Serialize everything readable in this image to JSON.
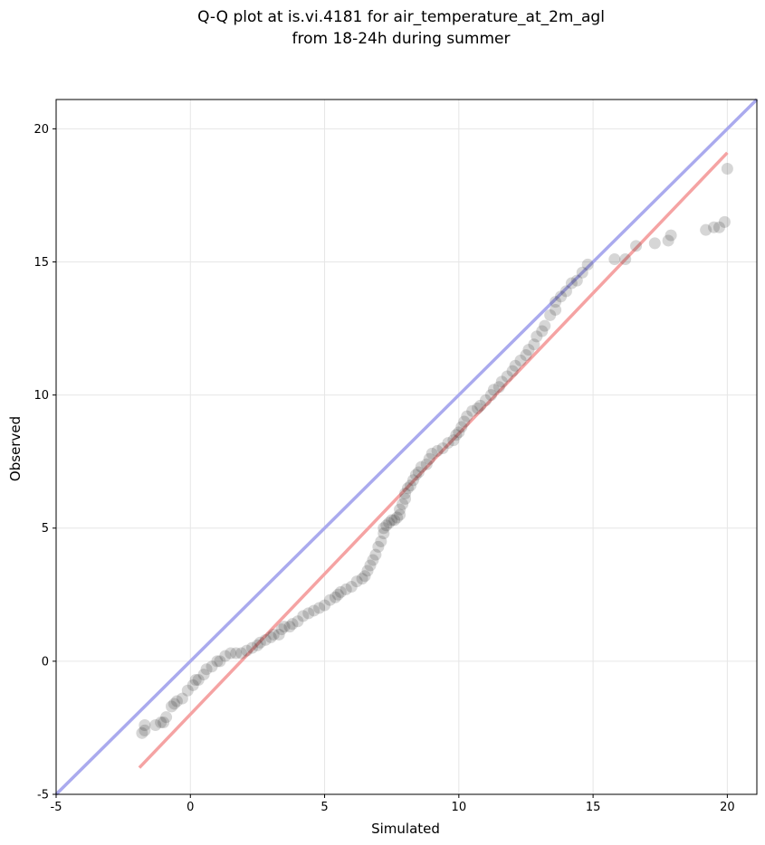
{
  "chart_data": {
    "type": "scatter",
    "title": [
      "Q-Q plot at is.vi.4181 for air_temperature_at_2m_agl",
      "from 18-24h during summer"
    ],
    "xlabel": "Simulated",
    "ylabel": "Observed",
    "xlim": [
      -5,
      21.1
    ],
    "ylim": [
      -5,
      21.1
    ],
    "xticks": [
      "-5",
      "0",
      "5",
      "10",
      "15",
      "20"
    ],
    "yticks": [
      "-5",
      "0",
      "5",
      "10",
      "15",
      "20"
    ],
    "grid": true,
    "colors": {
      "points": "#333333",
      "identity_line": "#aaaaee",
      "fit_line": "#f5a3a3"
    },
    "reference_lines": [
      {
        "kind": "identity",
        "x": [
          -5,
          21.1
        ],
        "y": [
          -5,
          21.1
        ]
      },
      {
        "kind": "fit",
        "x": [
          -1.9,
          20
        ],
        "y": [
          -4,
          19.1
        ]
      }
    ],
    "points": [
      [
        -1.8,
        -2.7
      ],
      [
        -1.7,
        -2.6
      ],
      [
        -1.7,
        -2.4
      ],
      [
        -1.3,
        -2.4
      ],
      [
        -1.1,
        -2.3
      ],
      [
        -1.0,
        -2.3
      ],
      [
        -0.9,
        -2.1
      ],
      [
        -0.7,
        -1.7
      ],
      [
        -0.6,
        -1.6
      ],
      [
        -0.5,
        -1.5
      ],
      [
        -0.3,
        -1.4
      ],
      [
        -0.1,
        -1.1
      ],
      [
        0.1,
        -0.9
      ],
      [
        0.2,
        -0.7
      ],
      [
        0.3,
        -0.7
      ],
      [
        0.5,
        -0.5
      ],
      [
        0.6,
        -0.3
      ],
      [
        0.8,
        -0.2
      ],
      [
        1.0,
        0.0
      ],
      [
        1.1,
        0.0
      ],
      [
        1.3,
        0.2
      ],
      [
        1.5,
        0.3
      ],
      [
        1.7,
        0.3
      ],
      [
        1.9,
        0.3
      ],
      [
        2.1,
        0.4
      ],
      [
        2.3,
        0.5
      ],
      [
        2.5,
        0.6
      ],
      [
        2.6,
        0.7
      ],
      [
        2.8,
        0.8
      ],
      [
        3.0,
        0.9
      ],
      [
        3.1,
        1.0
      ],
      [
        3.3,
        1.0
      ],
      [
        3.4,
        1.2
      ],
      [
        3.5,
        1.3
      ],
      [
        3.7,
        1.3
      ],
      [
        3.8,
        1.4
      ],
      [
        4.0,
        1.5
      ],
      [
        4.2,
        1.7
      ],
      [
        4.4,
        1.8
      ],
      [
        4.6,
        1.9
      ],
      [
        4.8,
        2.0
      ],
      [
        5.0,
        2.1
      ],
      [
        5.2,
        2.3
      ],
      [
        5.4,
        2.4
      ],
      [
        5.5,
        2.5
      ],
      [
        5.6,
        2.6
      ],
      [
        5.8,
        2.7
      ],
      [
        6.0,
        2.8
      ],
      [
        6.2,
        3.0
      ],
      [
        6.4,
        3.1
      ],
      [
        6.5,
        3.2
      ],
      [
        6.6,
        3.4
      ],
      [
        6.7,
        3.6
      ],
      [
        6.8,
        3.8
      ],
      [
        6.9,
        4.0
      ],
      [
        7.0,
        4.3
      ],
      [
        7.1,
        4.5
      ],
      [
        7.2,
        4.8
      ],
      [
        7.2,
        5.0
      ],
      [
        7.3,
        5.1
      ],
      [
        7.4,
        5.2
      ],
      [
        7.5,
        5.3
      ],
      [
        7.6,
        5.3
      ],
      [
        7.7,
        5.4
      ],
      [
        7.8,
        5.5
      ],
      [
        7.8,
        5.7
      ],
      [
        7.9,
        5.9
      ],
      [
        8.0,
        6.1
      ],
      [
        8.0,
        6.3
      ],
      [
        8.1,
        6.5
      ],
      [
        8.2,
        6.6
      ],
      [
        8.3,
        6.8
      ],
      [
        8.4,
        7.0
      ],
      [
        8.5,
        7.1
      ],
      [
        8.6,
        7.3
      ],
      [
        8.8,
        7.4
      ],
      [
        8.9,
        7.6
      ],
      [
        9.0,
        7.8
      ],
      [
        9.2,
        7.9
      ],
      [
        9.4,
        8.0
      ],
      [
        9.6,
        8.2
      ],
      [
        9.8,
        8.3
      ],
      [
        9.9,
        8.5
      ],
      [
        10.0,
        8.6
      ],
      [
        10.1,
        8.8
      ],
      [
        10.2,
        9.0
      ],
      [
        10.3,
        9.2
      ],
      [
        10.5,
        9.4
      ],
      [
        10.7,
        9.5
      ],
      [
        10.8,
        9.6
      ],
      [
        11.0,
        9.8
      ],
      [
        11.2,
        10.0
      ],
      [
        11.3,
        10.2
      ],
      [
        11.5,
        10.3
      ],
      [
        11.6,
        10.5
      ],
      [
        11.8,
        10.7
      ],
      [
        12.0,
        10.9
      ],
      [
        12.1,
        11.1
      ],
      [
        12.3,
        11.3
      ],
      [
        12.5,
        11.5
      ],
      [
        12.6,
        11.7
      ],
      [
        12.8,
        11.9
      ],
      [
        12.9,
        12.2
      ],
      [
        13.1,
        12.4
      ],
      [
        13.2,
        12.6
      ],
      [
        13.4,
        13.0
      ],
      [
        13.6,
        13.2
      ],
      [
        13.6,
        13.5
      ],
      [
        13.8,
        13.7
      ],
      [
        14.0,
        13.9
      ],
      [
        14.2,
        14.2
      ],
      [
        14.4,
        14.3
      ],
      [
        14.6,
        14.6
      ],
      [
        14.8,
        14.9
      ],
      [
        15.8,
        15.1
      ],
      [
        16.2,
        15.1
      ],
      [
        16.6,
        15.6
      ],
      [
        17.3,
        15.7
      ],
      [
        17.8,
        15.8
      ],
      [
        17.9,
        16.0
      ],
      [
        19.2,
        16.2
      ],
      [
        19.5,
        16.3
      ],
      [
        19.7,
        16.3
      ],
      [
        19.9,
        16.5
      ],
      [
        20.0,
        18.5
      ]
    ]
  }
}
